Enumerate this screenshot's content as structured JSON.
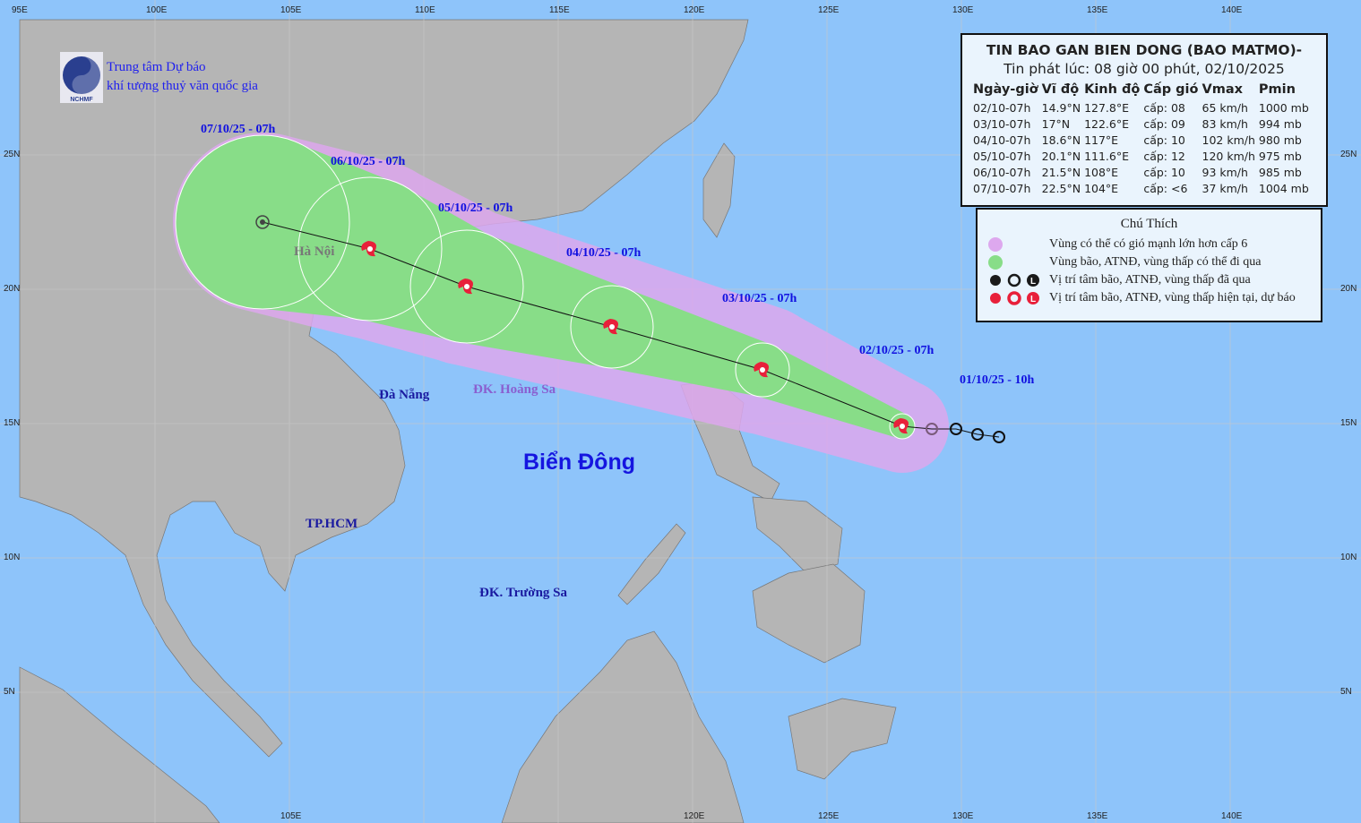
{
  "org": {
    "logo_text": "NCHMF",
    "line1": "Trung tâm Dự báo",
    "line2": "khí tượng thuỷ văn quốc gia"
  },
  "info": {
    "title": "TIN BAO GAN BIEN DONG (BAO MATMO)-",
    "issued": "Tin phát lúc: 08 giờ 00 phút, 02/10/2025",
    "headers": [
      "Ngày-giờ",
      "Vĩ độ",
      "Kinh độ",
      "Cấp gió",
      "Vmax",
      "Pmin"
    ],
    "rows": [
      [
        "02/10-07h",
        "14.9°N",
        "127.8°E",
        "cấp: 08",
        "65 km/h",
        "1000 mb"
      ],
      [
        "03/10-07h",
        "17°N",
        "122.6°E",
        "cấp: 09",
        "83 km/h",
        "994 mb"
      ],
      [
        "04/10-07h",
        "18.6°N",
        "117°E",
        "cấp: 10",
        "102 km/h",
        "980 mb"
      ],
      [
        "05/10-07h",
        "20.1°N",
        "111.6°E",
        "cấp: 12",
        "120 km/h",
        "975 mb"
      ],
      [
        "06/10-07h",
        "21.5°N",
        "108°E",
        "cấp: 10",
        "93 km/h",
        "985 mb"
      ],
      [
        "07/10-07h",
        "22.5°N",
        "104°E",
        "cấp: <6",
        "37 km/h",
        "1004 mb"
      ]
    ]
  },
  "legend": {
    "title": "Chú Thích",
    "items": [
      {
        "text": "Vùng có thể có gió mạnh lớn hơn cấp 6",
        "color": "#dda8ee"
      },
      {
        "text": "Vùng bão, ATNĐ, vùng thấp có thể đi qua",
        "color": "#88dd88"
      },
      {
        "text": "Vị trí tâm bão, ATNĐ, vùng thấp đã qua",
        "color": "#1a1a1a"
      },
      {
        "text": "Vị trí tâm bão, ATNĐ, vùng thấp hiện tại, dự báo",
        "color": "#e8203a"
      }
    ]
  },
  "track": {
    "forecast": [
      {
        "label": "02/10/25 - 07h",
        "lat": 14.9,
        "lon": 127.8
      },
      {
        "label": "03/10/25 - 07h",
        "lat": 17.0,
        "lon": 122.6
      },
      {
        "label": "04/10/25 - 07h",
        "lat": 18.6,
        "lon": 117.0
      },
      {
        "label": "05/10/25 - 07h",
        "lat": 20.1,
        "lon": 111.6
      },
      {
        "label": "06/10/25 - 07h",
        "lat": 21.5,
        "lon": 108.0
      },
      {
        "label": "07/10/25 - 07h",
        "lat": 22.5,
        "lon": 104.0
      }
    ],
    "past_label": "01/10/25 - 10h",
    "past": [
      {
        "lat": 14.5,
        "lon": 131.4
      },
      {
        "lat": 14.6,
        "lon": 130.6
      },
      {
        "lat": 14.8,
        "lon": 129.8
      },
      {
        "lat": 14.8,
        "lon": 128.9
      }
    ]
  },
  "places": {
    "hanoi": "Hà Nội",
    "danang": "Đà Nẵng",
    "hoangsa": "ĐK. Hoàng Sa",
    "hcm": "TP.HCM",
    "truongsa": "ĐK. Trường Sa",
    "sea": "Biển Đông"
  },
  "axes": {
    "lon_top": [
      "95E",
      "100E",
      "105E",
      "110E",
      "115E",
      "120E",
      "125E",
      "130E",
      "135E",
      "140E"
    ],
    "lon_bottom": [
      "105E",
      "120E",
      "125E",
      "130E",
      "135E",
      "140E"
    ],
    "lat": [
      "25N",
      "20N",
      "15N",
      "10N",
      "5N"
    ]
  },
  "colors": {
    "ocean": "#8ec4fa",
    "land": "#b5b5b5",
    "wind_zone": "#dda8ee",
    "storm_zone": "#88dd88",
    "storm_symbol": "#e8203a"
  }
}
